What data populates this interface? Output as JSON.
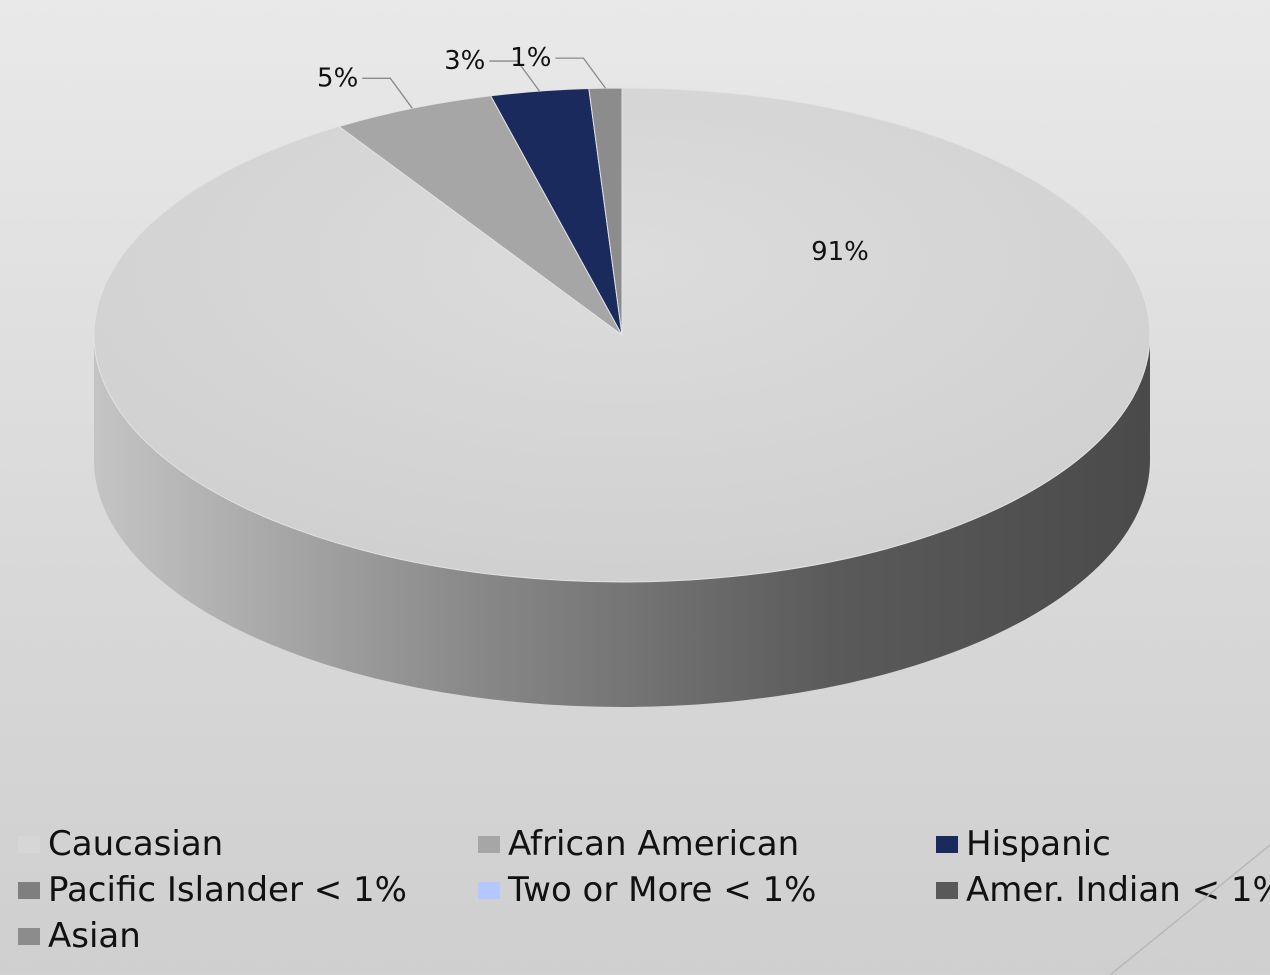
{
  "chart_data": {
    "type": "pie",
    "style": "3d",
    "slices": [
      {
        "label": "Caucasian",
        "value": 91,
        "data_label": "91%",
        "color": "#d6d6d6"
      },
      {
        "label": "African American",
        "value": 5,
        "data_label": "5%",
        "color": "#a6a6a6"
      },
      {
        "label": "Hispanic",
        "value": 3,
        "data_label": "3%",
        "color": "#1a2a5c"
      },
      {
        "label": "Pacific Islander < 1%",
        "value": 0,
        "data_label": "",
        "color": "#7f7f7f"
      },
      {
        "label": "Two or More < 1%",
        "value": 0,
        "data_label": "",
        "color": "#b4c7ff"
      },
      {
        "label": "Amer. Indian < 1%",
        "value": 0,
        "data_label": "",
        "color": "#595959"
      },
      {
        "label": "Asian",
        "value": 1,
        "data_label": "1%",
        "color": "#8c8c8c"
      }
    ],
    "legend_position": "bottom"
  }
}
